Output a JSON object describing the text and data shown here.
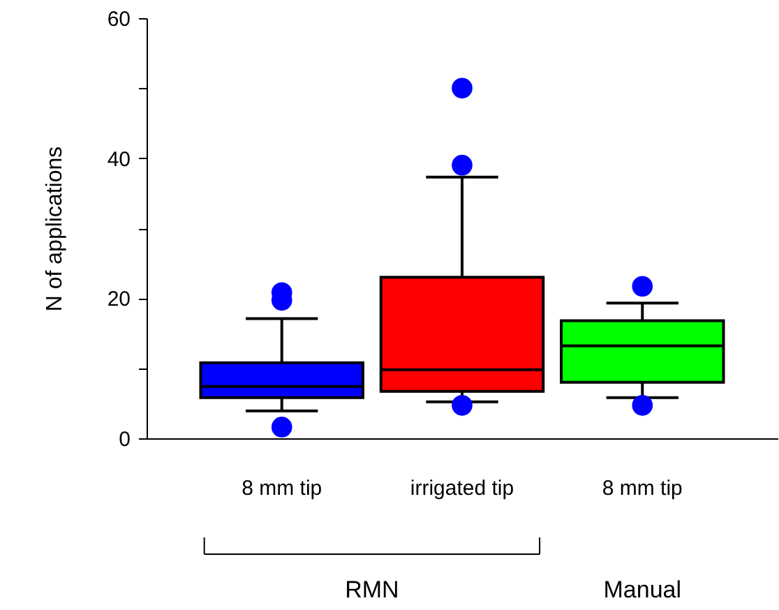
{
  "chart_data": {
    "type": "box",
    "ylabel": "N of applications",
    "categories": [
      "8 mm tip",
      "irrigated tip",
      "8 mm tip"
    ],
    "series": [
      {
        "colors": [
          "#0000ff",
          "#ff0000",
          "#00ff00"
        ],
        "color": "#0000ff",
        "boxes": [
          {
            "low": 3.9,
            "q1": 5.8,
            "median": 7.4,
            "q3": 10.8,
            "high": 17.1,
            "outliers": [
              20.8,
              19.7,
              1.6
            ]
          },
          {
            "low": 5.2,
            "q1": 6.7,
            "median": 9.8,
            "q3": 23.0,
            "high": 37.3,
            "outliers": [
              50,
              39,
              4.7
            ]
          },
          {
            "low": 5.8,
            "q1": 8.0,
            "median": 13.2,
            "q3": 16.8,
            "high": 19.3,
            "outliers": [
              21.7,
              4.7
            ]
          }
        ]
      }
    ],
    "ylim": [
      0,
      60
    ],
    "yticks": [
      0,
      {
        "value": 10,
        "label": null
      },
      20,
      {
        "value": 30,
        "label": null
      },
      40,
      {
        "value": 50,
        "label": null
      },
      60
    ],
    "grid": false,
    "marker": "circle",
    "annotations": [
      "RMN",
      "Manual"
    ]
  }
}
